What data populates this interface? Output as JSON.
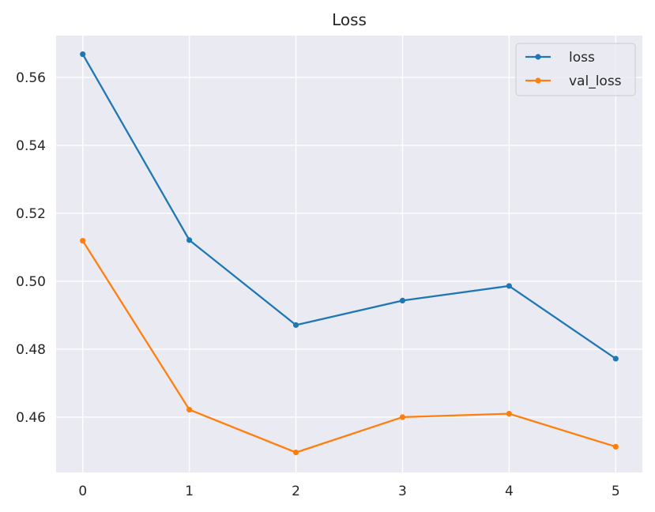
{
  "chart_data": {
    "type": "line",
    "title": "Loss",
    "xlabel": "",
    "ylabel": "",
    "x": [
      0,
      1,
      2,
      3,
      4,
      5
    ],
    "x_ticks": [
      "0",
      "1",
      "2",
      "3",
      "4",
      "5"
    ],
    "y_ticks": [
      "0.46",
      "0.48",
      "0.50",
      "0.52",
      "0.54",
      "0.56"
    ],
    "xlim": [
      -0.25,
      5.25
    ],
    "ylim": [
      0.4437,
      0.5723
    ],
    "grid": true,
    "legend_position": "top-right",
    "background": "#eaeaf2",
    "series": [
      {
        "name": "loss",
        "color": "#1f77b4",
        "values": [
          0.5668,
          0.5121,
          0.4871,
          0.4943,
          0.4986,
          0.4772
        ]
      },
      {
        "name": "val_loss",
        "color": "#ff7f0e",
        "values": [
          0.5119,
          0.4622,
          0.4496,
          0.46,
          0.461,
          0.4513
        ]
      }
    ]
  }
}
